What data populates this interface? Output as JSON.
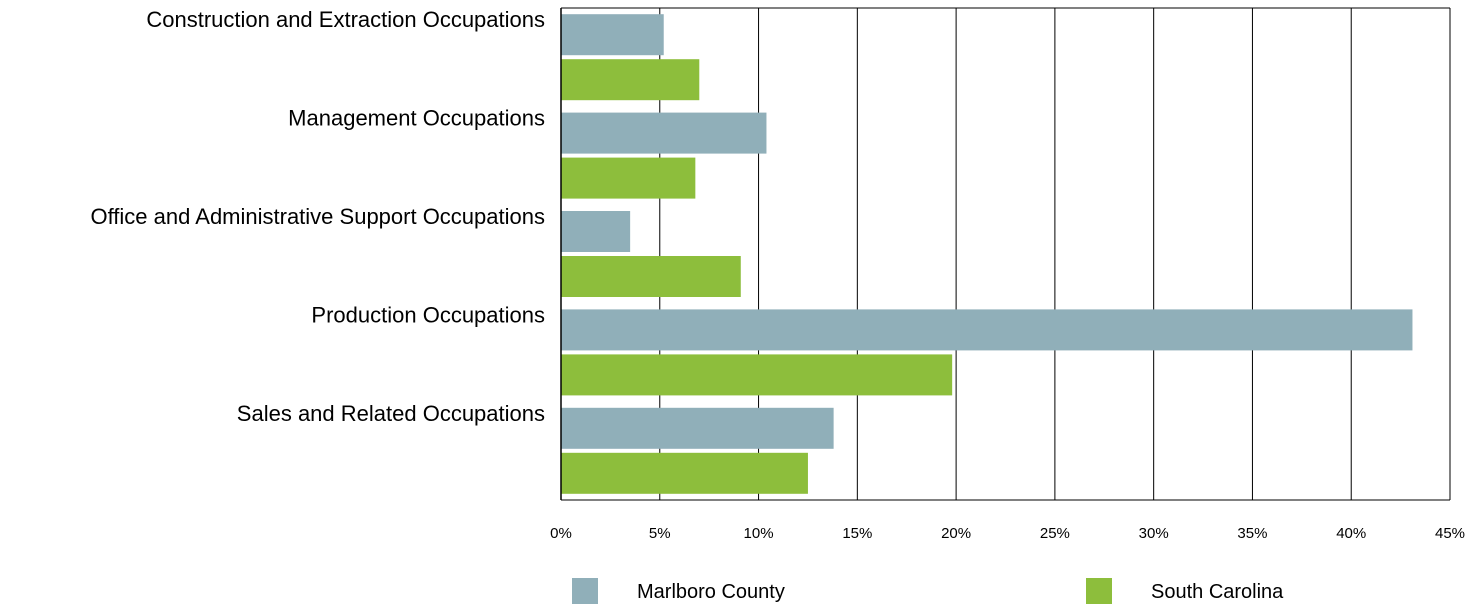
{
  "chart_data": {
    "type": "bar",
    "orientation": "horizontal",
    "title": "",
    "xlabel": "",
    "ylabel": "",
    "categories": [
      "Construction and Extraction Occupations",
      "Management Occupations",
      "Office and Administrative Support Occupations",
      "Production Occupations",
      "Sales and Related Occupations"
    ],
    "series": [
      {
        "name": "Marlboro County",
        "color": "#90afb9",
        "values": [
          5.2,
          10.4,
          3.5,
          43.1,
          13.8
        ]
      },
      {
        "name": "South Carolina",
        "color": "#8dbe3c",
        "values": [
          7.0,
          6.8,
          9.1,
          19.8,
          12.5
        ]
      }
    ],
    "xlim": [
      0,
      45
    ],
    "xticks": [
      0,
      5,
      10,
      15,
      20,
      25,
      30,
      35,
      40,
      45
    ],
    "xtick_labels": [
      "0%",
      "5%",
      "10%",
      "15%",
      "20%",
      "25%",
      "30%",
      "35%",
      "40%",
      "45%"
    ],
    "grid": true,
    "legend_position": "bottom"
  }
}
